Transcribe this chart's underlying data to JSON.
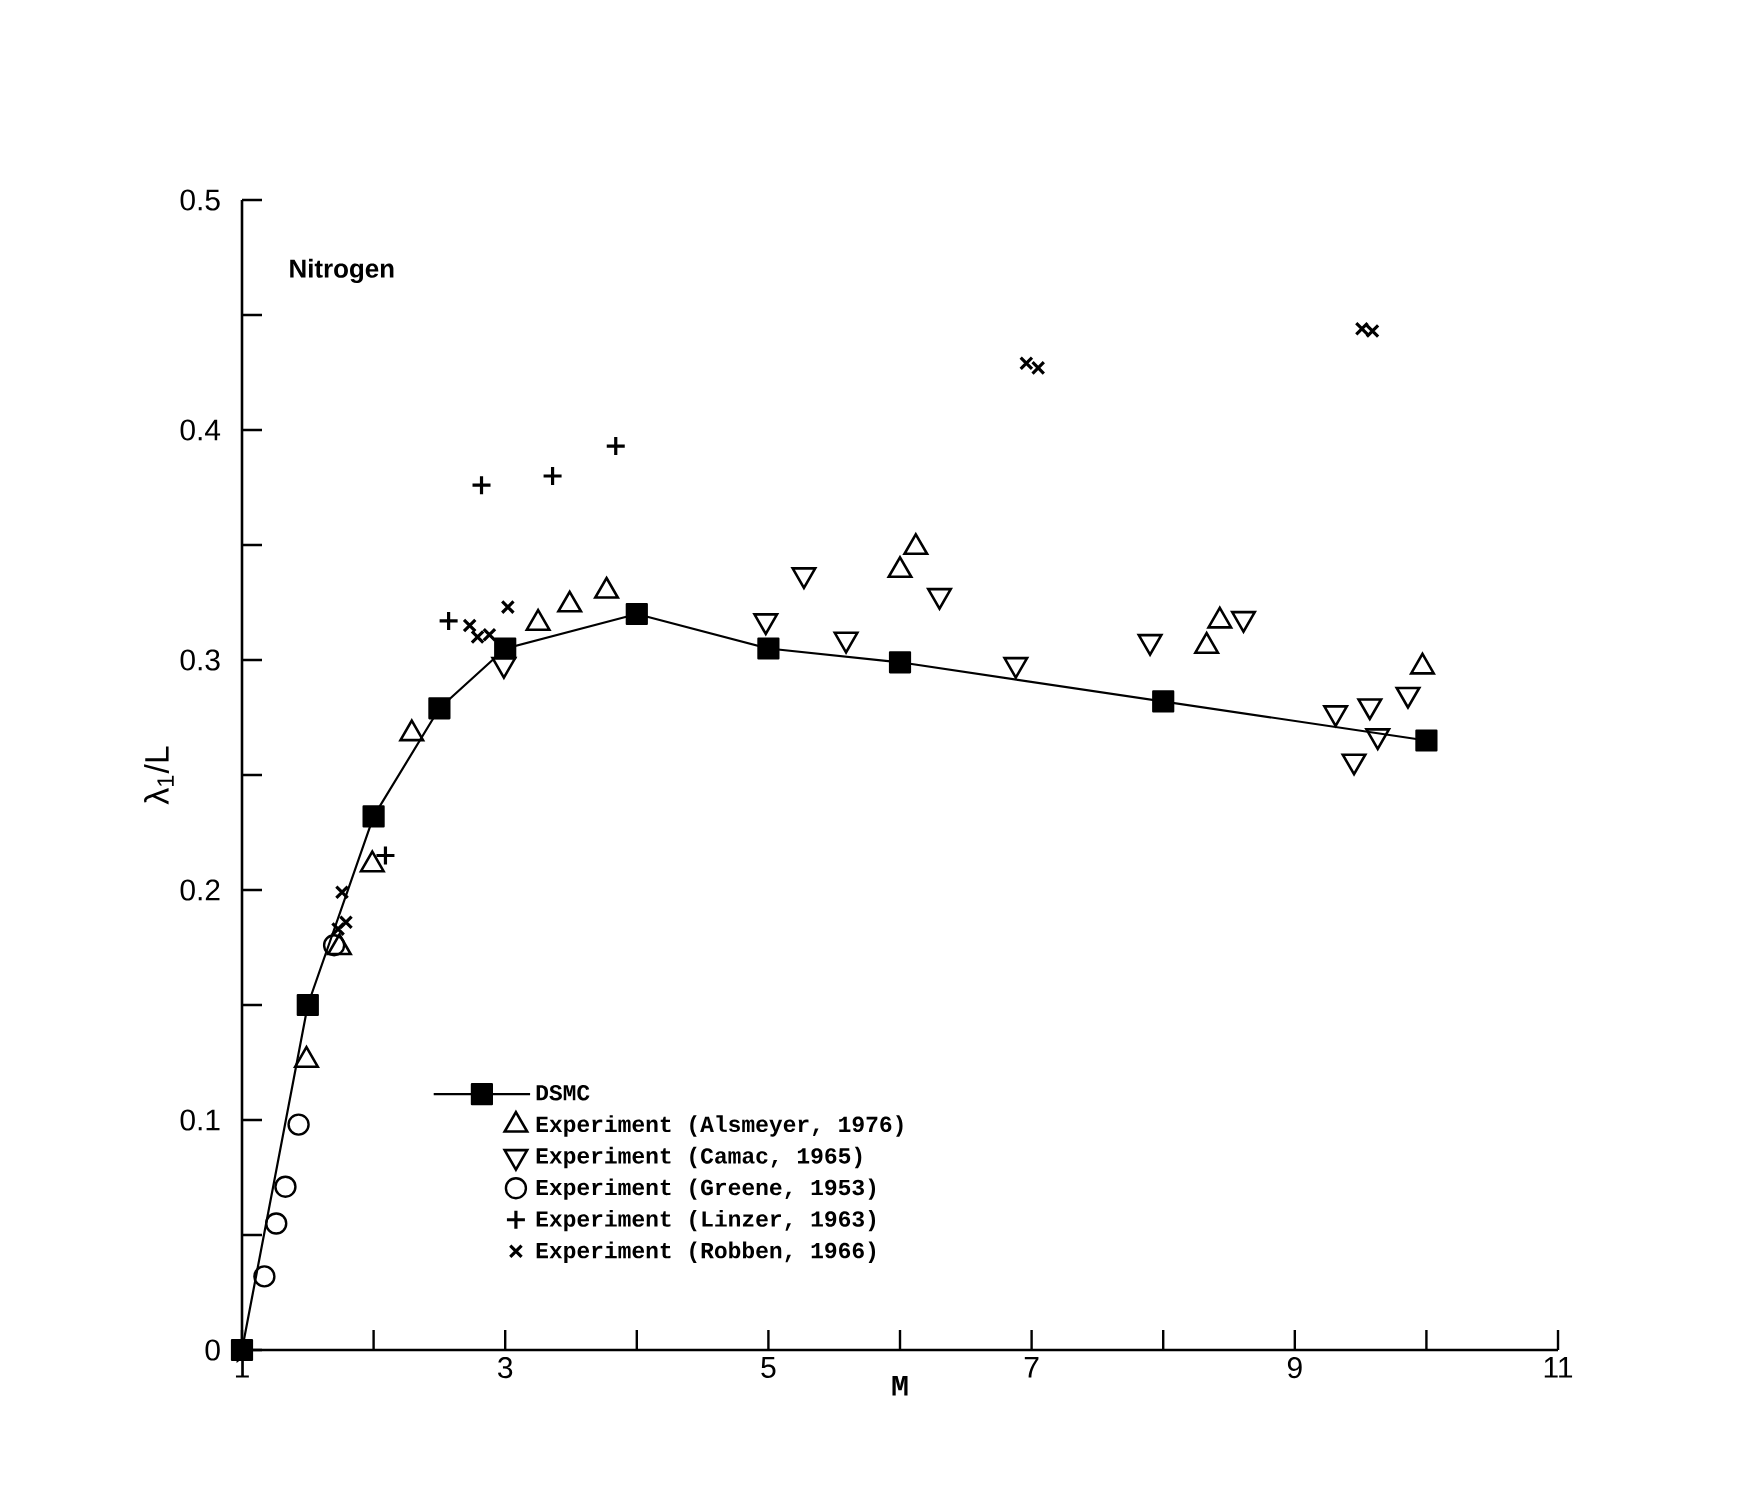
{
  "chart_data": {
    "type": "scatter",
    "xlabel": "M",
    "ylabel": "λ$_{1}$/L",
    "annotations": [
      "Nitrogen"
    ],
    "xlim": [
      1,
      11
    ],
    "ylim": [
      0,
      0.5
    ],
    "xticks": [
      1,
      {
        "value": 2,
        "label": null
      },
      3,
      {
        "value": 4,
        "label": null
      },
      5,
      {
        "value": 6,
        "label": null
      },
      7,
      {
        "value": 8,
        "label": null
      },
      9,
      {
        "value": 10,
        "label": null
      },
      11
    ],
    "yticks": [
      0,
      {
        "value": 0.05,
        "label": null
      },
      0.1,
      {
        "value": 0.15,
        "label": null
      },
      0.2,
      {
        "value": 0.25,
        "label": null
      },
      0.3,
      {
        "value": 0.35,
        "label": null
      },
      0.4,
      {
        "value": 0.45,
        "label": null
      },
      0.5
    ],
    "legend": "bottom",
    "grid": false,
    "series": [
      {
        "name": "DSMC",
        "type": "line",
        "marker": "square",
        "color": "#000000",
        "x": [
          1,
          1.5,
          2,
          2.5,
          3,
          4,
          5,
          6,
          8,
          10
        ],
        "values": [
          0,
          0.15,
          0.232,
          0.279,
          0.305,
          0.32,
          0.305,
          0.299,
          0.282,
          0.265
        ]
      },
      {
        "name": "Experiment (Alsmeyer, 1976)",
        "marker": "triangle",
        "color": "#000000",
        "x": [
          1.49,
          1.74,
          1.99,
          2.29,
          3.25,
          3.49,
          3.77,
          6.0,
          6.12,
          8.33,
          8.43,
          9.97
        ],
        "values": [
          0.126,
          0.175,
          0.211,
          0.268,
          0.316,
          0.324,
          0.33,
          0.339,
          0.349,
          0.306,
          0.317,
          0.297
        ]
      },
      {
        "name": "Experiment (Camac, 1965)",
        "marker": "triangle-down",
        "color": "#000000",
        "x": [
          2.99,
          4.98,
          5.27,
          5.59,
          6.3,
          6.88,
          7.9,
          8.61,
          9.31,
          9.45,
          9.57,
          9.63,
          9.86
        ],
        "values": [
          0.298,
          0.317,
          0.337,
          0.309,
          0.328,
          0.298,
          0.308,
          0.318,
          0.277,
          0.256,
          0.28,
          0.267,
          0.285
        ]
      },
      {
        "name": "Experiment (Greene, 1953)",
        "marker": "circle",
        "color": "#000000",
        "x": [
          1.17,
          1.26,
          1.33,
          1.43,
          1.7
        ],
        "values": [
          0.032,
          0.055,
          0.071,
          0.098,
          0.176
        ]
      },
      {
        "name": "Experiment (Linzer, 1963)",
        "marker": "plus",
        "color": "#000000",
        "x": [
          2.09,
          2.57,
          2.82,
          3.36,
          3.84
        ],
        "values": [
          0.215,
          0.317,
          0.376,
          0.38,
          0.393
        ]
      },
      {
        "name": "Experiment (Robben, 1966)",
        "marker": "cross",
        "color": "#000000",
        "x": [
          1.73,
          1.76,
          1.79,
          2.73,
          2.79,
          2.88,
          3.02,
          6.96,
          7.05,
          9.51,
          9.59
        ],
        "values": [
          0.183,
          0.199,
          0.186,
          0.315,
          0.31,
          0.311,
          0.323,
          0.429,
          0.427,
          0.444,
          0.443
        ]
      }
    ]
  }
}
